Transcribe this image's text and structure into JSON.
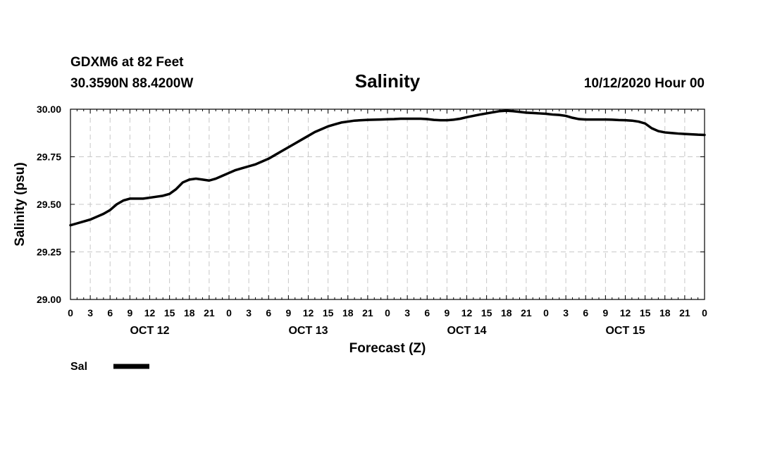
{
  "header": {
    "station": "GDXM6 at 82 Feet",
    "coords": "30.3590N 88.4200W",
    "title": "Salinity",
    "run": "10/12/2020 Hour 00"
  },
  "chart_data": {
    "type": "line",
    "title": "Salinity",
    "xlabel": "Forecast (Z)",
    "ylabel": "Salinity (psu)",
    "ylim": [
      29.0,
      30.0
    ],
    "xlim_hours": [
      0,
      96
    ],
    "yticks": [
      "29.00",
      "29.25",
      "29.50",
      "29.75",
      "30.00"
    ],
    "ytick_values": [
      29.0,
      29.25,
      29.5,
      29.75,
      30.0
    ],
    "xtick_labels": [
      "0",
      "3",
      "6",
      "9",
      "12",
      "15",
      "18",
      "21",
      "0",
      "3",
      "6",
      "9",
      "12",
      "15",
      "18",
      "21",
      "0",
      "3",
      "6",
      "9",
      "12",
      "15",
      "18",
      "21",
      "0",
      "3",
      "6",
      "9",
      "12",
      "15",
      "18",
      "21",
      "0"
    ],
    "day_labels": [
      "OCT 12",
      "OCT 13",
      "OCT 14",
      "OCT 15"
    ],
    "day_label_hours": [
      12,
      36,
      60,
      84
    ],
    "grid": true,
    "legend": {
      "position": "bottom-left",
      "entries": [
        "Sal"
      ]
    },
    "series": [
      {
        "name": "Sal",
        "x": [
          0,
          1,
          2,
          3,
          4,
          5,
          6,
          7,
          8,
          9,
          10,
          11,
          12,
          13,
          14,
          15,
          16,
          17,
          18,
          19,
          20,
          21,
          22,
          23,
          24,
          25,
          26,
          27,
          28,
          29,
          30,
          31,
          32,
          33,
          34,
          35,
          36,
          37,
          38,
          39,
          40,
          41,
          42,
          43,
          44,
          45,
          46,
          47,
          48,
          49,
          50,
          51,
          52,
          53,
          54,
          55,
          56,
          57,
          58,
          59,
          60,
          61,
          62,
          63,
          64,
          65,
          66,
          67,
          68,
          69,
          70,
          71,
          72,
          73,
          74,
          75,
          76,
          77,
          78,
          79,
          80,
          81,
          82,
          83,
          84,
          85,
          86,
          87,
          88,
          89,
          90,
          91,
          92,
          93,
          94,
          95,
          96
        ],
        "values": [
          29.39,
          29.4,
          29.41,
          29.42,
          29.435,
          29.45,
          29.47,
          29.5,
          29.52,
          29.53,
          29.53,
          29.53,
          29.535,
          29.54,
          29.545,
          29.555,
          29.58,
          29.615,
          29.63,
          29.635,
          29.63,
          29.625,
          29.635,
          29.65,
          29.665,
          29.68,
          29.69,
          29.7,
          29.71,
          29.725,
          29.74,
          29.76,
          29.78,
          29.8,
          29.82,
          29.84,
          29.86,
          29.88,
          29.895,
          29.91,
          29.92,
          29.93,
          29.935,
          29.94,
          29.942,
          29.944,
          29.945,
          29.946,
          29.947,
          29.948,
          29.95,
          29.95,
          29.95,
          29.95,
          29.948,
          29.944,
          29.942,
          29.942,
          29.945,
          29.95,
          29.958,
          29.965,
          29.972,
          29.978,
          29.984,
          29.99,
          29.992,
          29.99,
          29.986,
          29.982,
          29.98,
          29.978,
          29.976,
          29.972,
          29.97,
          29.965,
          29.955,
          29.948,
          29.946,
          29.946,
          29.946,
          29.946,
          29.945,
          29.943,
          29.942,
          29.94,
          29.935,
          29.925,
          29.9,
          29.885,
          29.878,
          29.875,
          29.872,
          29.87,
          29.868,
          29.866,
          29.865
        ]
      }
    ]
  }
}
